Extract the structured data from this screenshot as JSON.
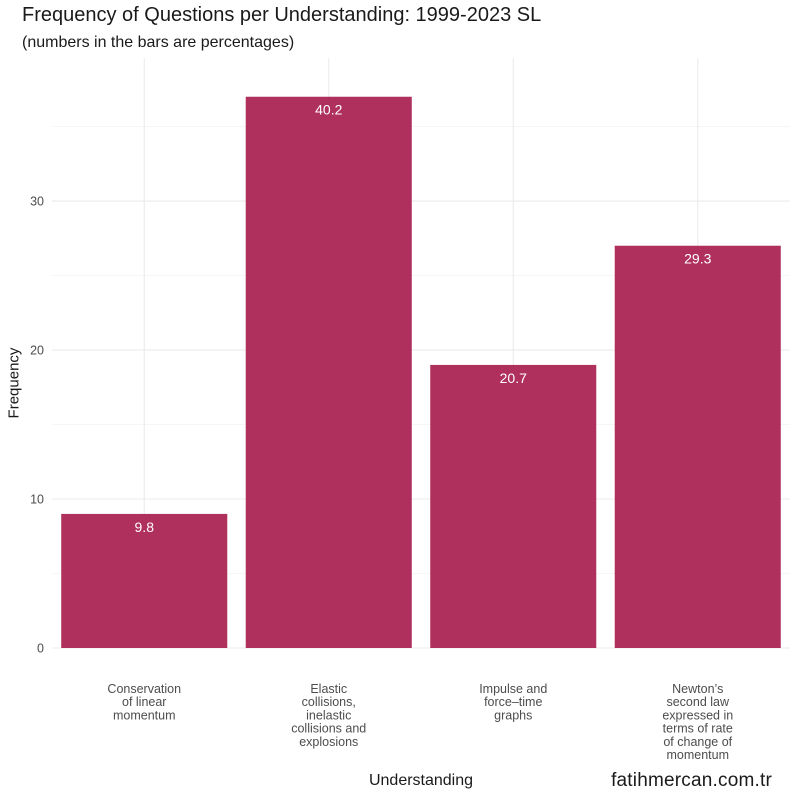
{
  "chart_data": {
    "type": "bar",
    "title": "Frequency of Questions per Understanding: 1999-2023 SL",
    "subtitle": "(numbers in the bars are percentages)",
    "xlabel": "Understanding",
    "ylabel": "Frequency",
    "categories": [
      [
        "Conservation",
        "of linear",
        "momentum"
      ],
      [
        "Elastic",
        "collisions,",
        "inelastic",
        "collisions and",
        "explosions"
      ],
      [
        "Impulse and",
        "force–time",
        "graphs"
      ],
      [
        "Newton’s",
        "second law",
        "expressed in",
        "terms of rate",
        "of change of",
        "momentum"
      ]
    ],
    "values": [
      9,
      37,
      19,
      27
    ],
    "percent_labels": [
      "9.8",
      "40.2",
      "20.7",
      "29.3"
    ],
    "ylim": [
      0,
      39.6
    ],
    "yticks": [
      0,
      10,
      20,
      30
    ],
    "bar_color": "#B0305D",
    "grid": true,
    "legend": "none"
  },
  "watermark": "fatihmercan.com.tr"
}
